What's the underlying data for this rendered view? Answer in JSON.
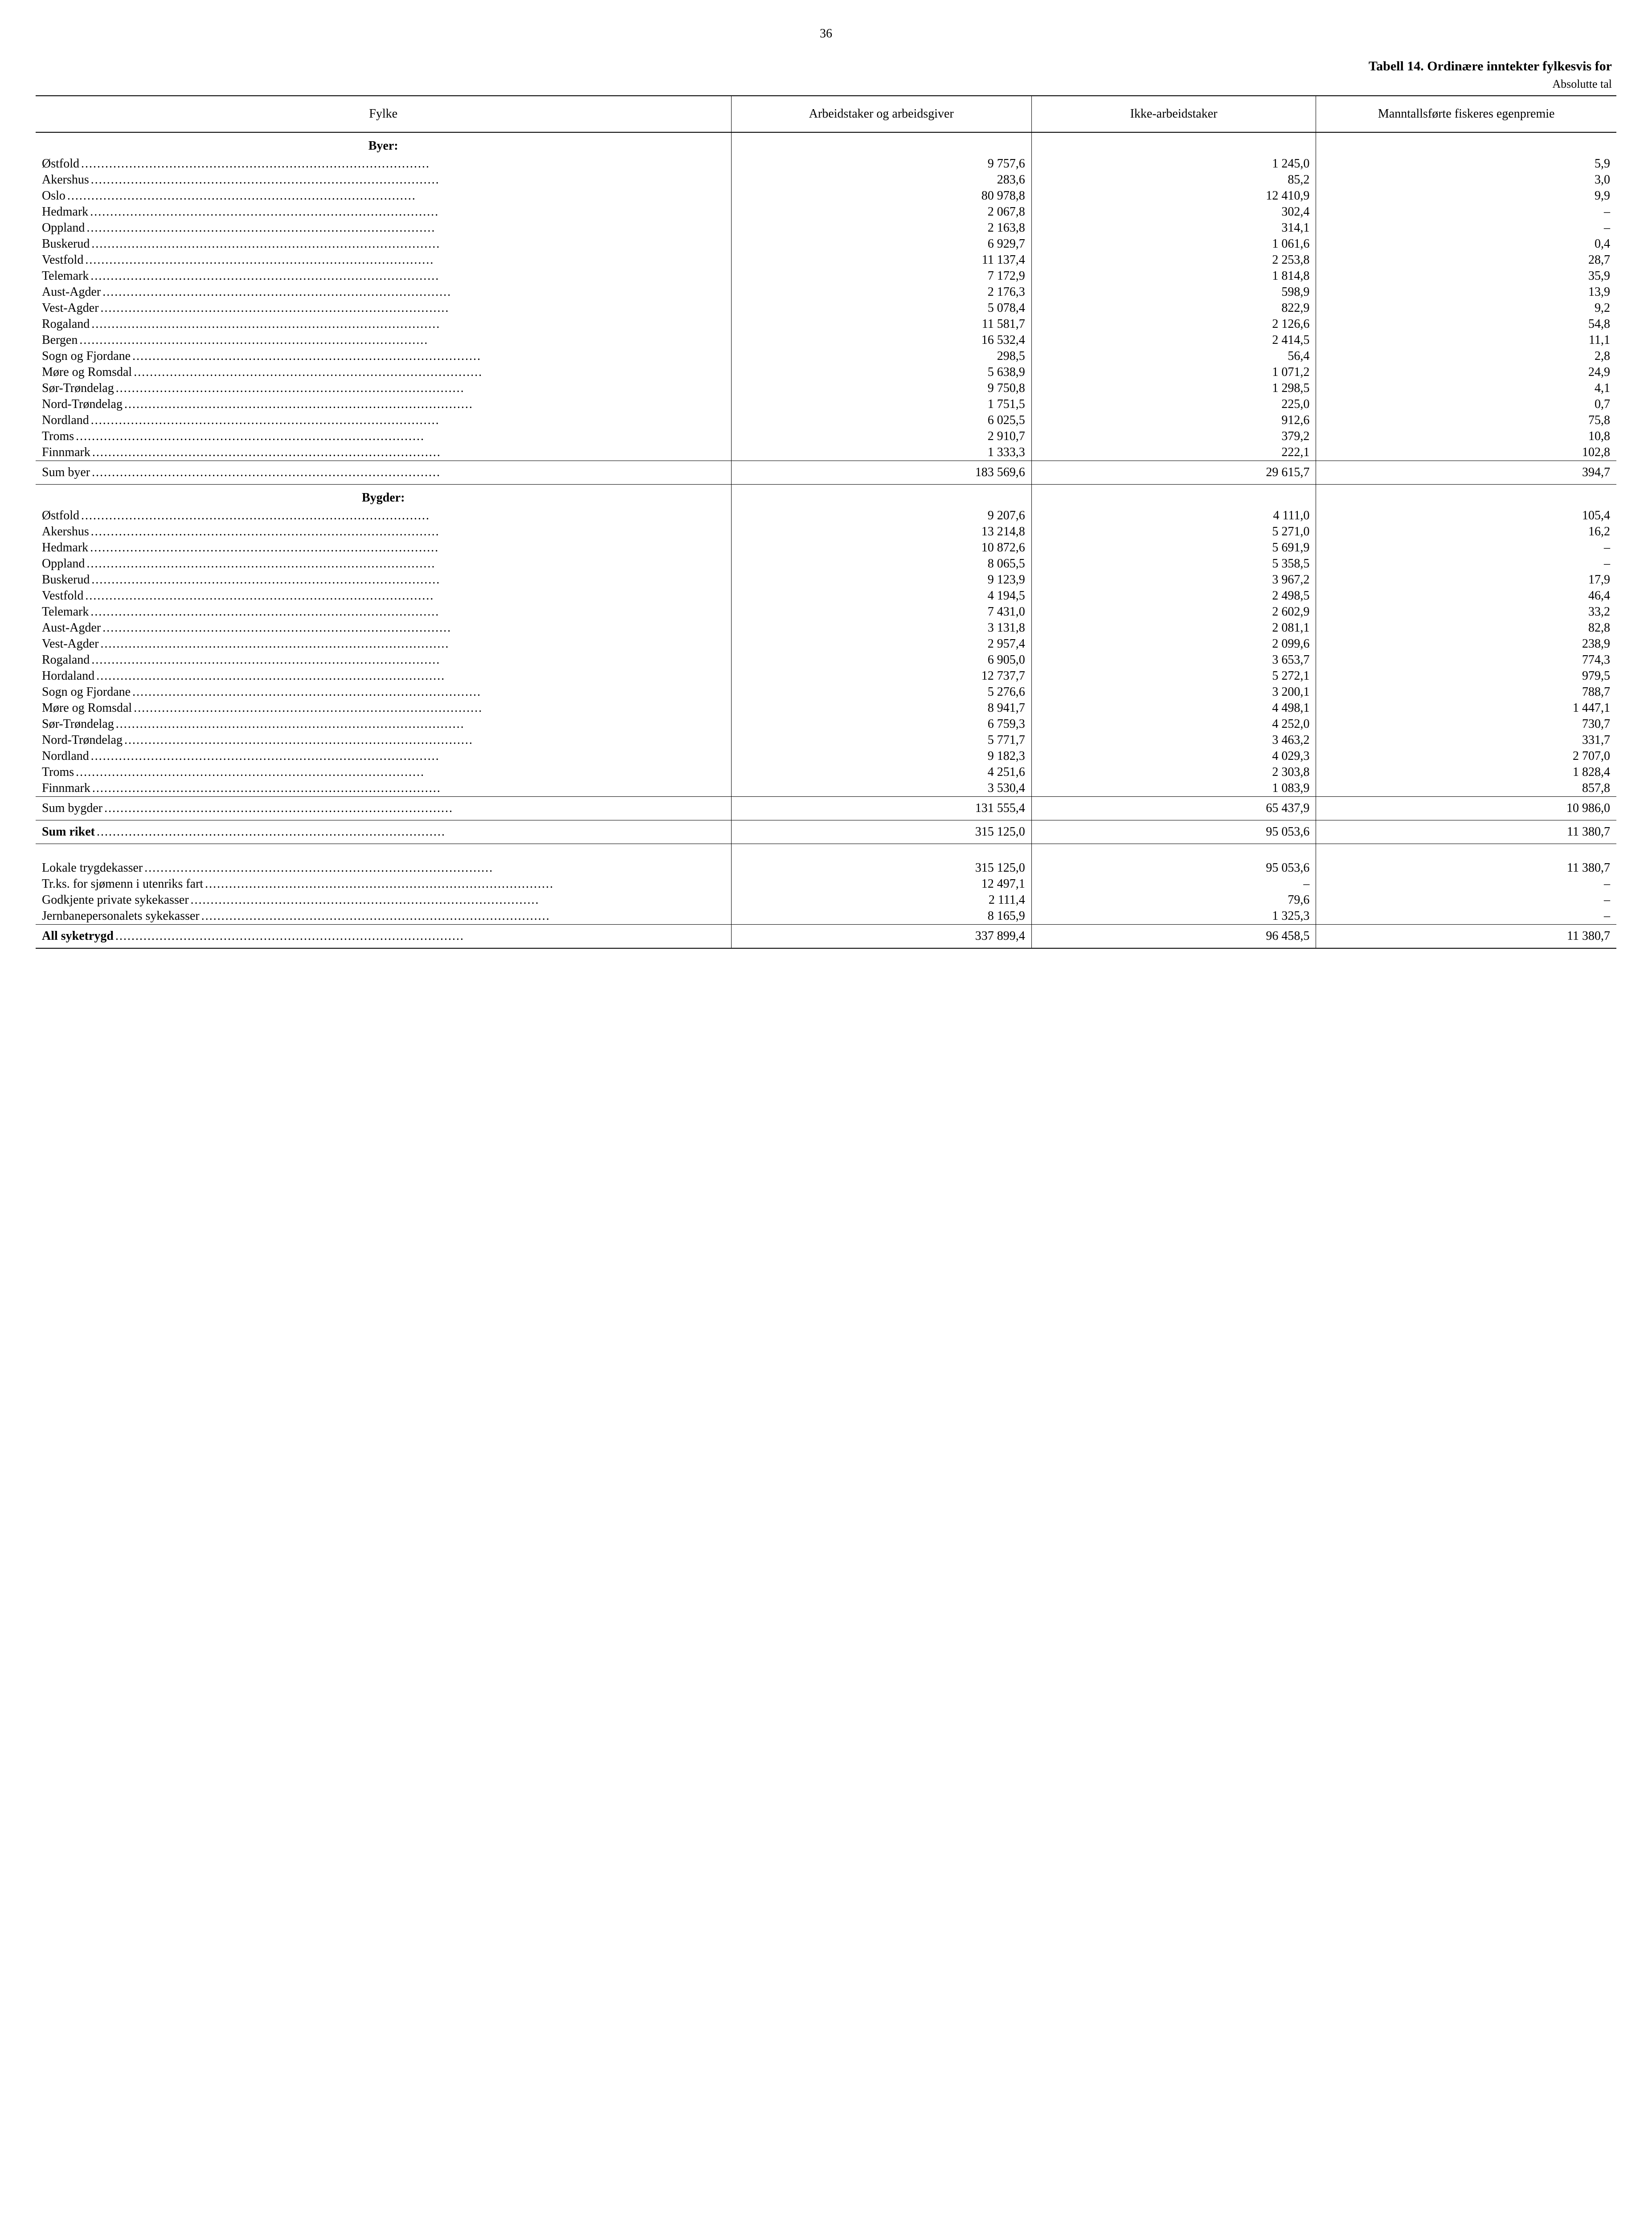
{
  "page_number": "36",
  "title": "Tabell 14.   Ordinære  inntekter fylkesvis  for",
  "subtitle": "Absolutte tal",
  "columns": {
    "c0": "Fylke",
    "c1": "Arbeidstaker og arbeidsgiver",
    "c2": "Ikke-arbeidstaker",
    "c3": "Manntallsførte fiskeres egenpremie"
  },
  "sections": [
    {
      "heading": "Byer:",
      "rows": [
        {
          "label": "Østfold",
          "c1": "9 757,6",
          "c2": "1 245,0",
          "c3": "5,9"
        },
        {
          "label": "Akershus",
          "c1": "283,6",
          "c2": "85,2",
          "c3": "3,0"
        },
        {
          "label": "Oslo",
          "c1": "80 978,8",
          "c2": "12 410,9",
          "c3": "9,9"
        },
        {
          "label": "Hedmark",
          "c1": "2 067,8",
          "c2": "302,4",
          "c3": "–"
        },
        {
          "label": "Oppland",
          "c1": "2 163,8",
          "c2": "314,1",
          "c3": "–"
        },
        {
          "label": "Buskerud",
          "c1": "6 929,7",
          "c2": "1 061,6",
          "c3": "0,4"
        },
        {
          "label": "Vestfold",
          "c1": "11 137,4",
          "c2": "2 253,8",
          "c3": "28,7"
        },
        {
          "label": "Telemark",
          "c1": "7 172,9",
          "c2": "1 814,8",
          "c3": "35,9"
        },
        {
          "label": "Aust-Agder",
          "c1": "2 176,3",
          "c2": "598,9",
          "c3": "13,9"
        },
        {
          "label": "Vest-Agder",
          "c1": "5 078,4",
          "c2": "822,9",
          "c3": "9,2"
        },
        {
          "label": "Rogaland",
          "c1": "11 581,7",
          "c2": "2 126,6",
          "c3": "54,8"
        },
        {
          "label": "Bergen",
          "c1": "16 532,4",
          "c2": "2 414,5",
          "c3": "11,1"
        },
        {
          "label": "Sogn og Fjordane",
          "c1": "298,5",
          "c2": "56,4",
          "c3": "2,8"
        },
        {
          "label": "Møre og Romsdal",
          "c1": "5 638,9",
          "c2": "1 071,2",
          "c3": "24,9"
        },
        {
          "label": "Sør-Trøndelag",
          "c1": "9 750,8",
          "c2": "1 298,5",
          "c3": "4,1"
        },
        {
          "label": "Nord-Trøndelag",
          "c1": "1 751,5",
          "c2": "225,0",
          "c3": "0,7"
        },
        {
          "label": "Nordland",
          "c1": "6 025,5",
          "c2": "912,6",
          "c3": "75,8"
        },
        {
          "label": "Troms",
          "c1": "2 910,7",
          "c2": "379,2",
          "c3": "10,8"
        },
        {
          "label": "Finnmark",
          "c1": "1 333,3",
          "c2": "222,1",
          "c3": "102,8"
        }
      ],
      "sum": {
        "label": "Sum byer",
        "c1": "183 569,6",
        "c2": "29 615,7",
        "c3": "394,7"
      }
    },
    {
      "heading": "Bygder:",
      "rows": [
        {
          "label": "Østfold",
          "c1": "9 207,6",
          "c2": "4 111,0",
          "c3": "105,4"
        },
        {
          "label": "Akershus",
          "c1": "13 214,8",
          "c2": "5 271,0",
          "c3": "16,2"
        },
        {
          "label": "Hedmark",
          "c1": "10 872,6",
          "c2": "5 691,9",
          "c3": "–"
        },
        {
          "label": "Oppland",
          "c1": "8 065,5",
          "c2": "5 358,5",
          "c3": "–"
        },
        {
          "label": "Buskerud",
          "c1": "9 123,9",
          "c2": "3 967,2",
          "c3": "17,9"
        },
        {
          "label": "Vestfold",
          "c1": "4 194,5",
          "c2": "2 498,5",
          "c3": "46,4"
        },
        {
          "label": "Telemark",
          "c1": "7 431,0",
          "c2": "2 602,9",
          "c3": "33,2"
        },
        {
          "label": "Aust-Agder",
          "c1": "3 131,8",
          "c2": "2 081,1",
          "c3": "82,8"
        },
        {
          "label": "Vest-Agder",
          "c1": "2 957,4",
          "c2": "2 099,6",
          "c3": "238,9"
        },
        {
          "label": "Rogaland",
          "c1": "6 905,0",
          "c2": "3 653,7",
          "c3": "774,3"
        },
        {
          "label": "Hordaland",
          "c1": "12 737,7",
          "c2": "5 272,1",
          "c3": "979,5"
        },
        {
          "label": "Sogn og Fjordane",
          "c1": "5 276,6",
          "c2": "3 200,1",
          "c3": "788,7"
        },
        {
          "label": "Møre og Romsdal",
          "c1": "8 941,7",
          "c2": "4 498,1",
          "c3": "1 447,1"
        },
        {
          "label": "Sør-Trøndelag",
          "c1": "6 759,3",
          "c2": "4 252,0",
          "c3": "730,7"
        },
        {
          "label": "Nord-Trøndelag",
          "c1": "5 771,7",
          "c2": "3 463,2",
          "c3": "331,7"
        },
        {
          "label": "Nordland",
          "c1": "9 182,3",
          "c2": "4 029,3",
          "c3": "2 707,0"
        },
        {
          "label": "Troms",
          "c1": "4 251,6",
          "c2": "2 303,8",
          "c3": "1 828,4"
        },
        {
          "label": "Finnmark",
          "c1": "3 530,4",
          "c2": "1 083,9",
          "c3": "857,8"
        }
      ],
      "sum": {
        "label": "Sum bygder",
        "c1": "131 555,4",
        "c2": "65 437,9",
        "c3": "10 986,0"
      }
    }
  ],
  "grand_sum": {
    "label": "Sum riket",
    "c1": "315 125,0",
    "c2": "95 053,6",
    "c3": "11 380,7"
  },
  "extras": [
    {
      "label": "Lokale trygdekasser",
      "c1": "315 125,0",
      "c2": "95 053,6",
      "c3": "11 380,7"
    },
    {
      "label": "Tr.ks. for sjømenn i utenriks fart",
      "c1": "12 497,1",
      "c2": "–",
      "c3": "–"
    },
    {
      "label": "Godkjente private sykekasser",
      "c1": "2 111,4",
      "c2": "79,6",
      "c3": "–"
    },
    {
      "label": "Jernbanepersonalets sykekasser",
      "c1": "8 165,9",
      "c2": "1 325,3",
      "c3": "–"
    }
  ],
  "final_sum": {
    "label": "All syketrygd",
    "c1": "337 899,4",
    "c2": "96 458,5",
    "c3": "11 380,7"
  }
}
